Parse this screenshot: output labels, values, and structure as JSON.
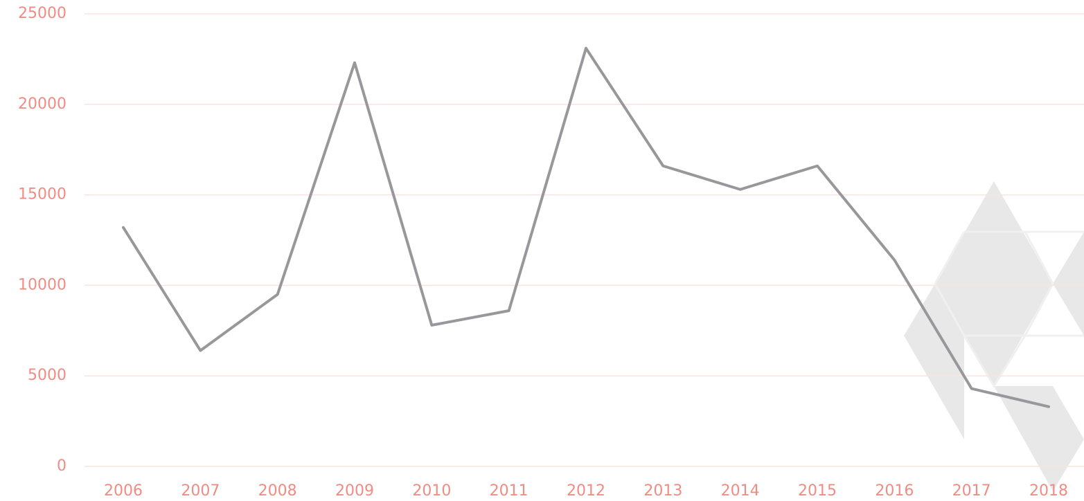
{
  "chart_data": {
    "type": "line",
    "categories": [
      "2006",
      "2007",
      "2008",
      "2009",
      "2010",
      "2011",
      "2012",
      "2013",
      "2014",
      "2015",
      "2016",
      "2017",
      "2018"
    ],
    "values": [
      13200,
      6400,
      9500,
      22300,
      7800,
      8600,
      23100,
      16600,
      15300,
      16600,
      11400,
      4300,
      3300
    ],
    "color": "#98989c",
    "ylim": [
      0,
      25000
    ],
    "yticks": [
      0,
      5000,
      10000,
      15000,
      20000,
      25000
    ],
    "grid": true
  }
}
